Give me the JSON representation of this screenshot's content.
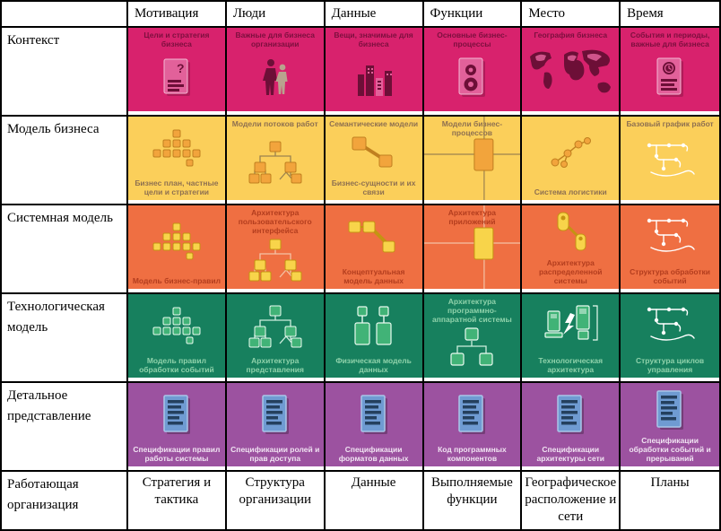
{
  "framework": {
    "header": {
      "corner": "",
      "columns": [
        "Мотивация",
        "Люди",
        "Данные",
        "Функции",
        "Место",
        "Время"
      ]
    },
    "rows": [
      {
        "label": "Контекст",
        "palette": {
          "bg": "#d8226d",
          "caption": "#7c0f3e",
          "a1": "#e2619a",
          "a2": "#6d0f37",
          "line": "#f2b8d2",
          "alt": "#b9a38e"
        },
        "cells": [
          {
            "caption_top": "Цели и стратегия бизнеса",
            "icon": "doc-question-icon"
          },
          {
            "caption_top": "Важные для бизнеса организации",
            "icon": "people-icon"
          },
          {
            "caption_top": "Вещи, значимые для бизнеса",
            "icon": "buildings-icon"
          },
          {
            "caption_top": "Основные бизнес-процессы",
            "icon": "doc-gears-icon"
          },
          {
            "caption_top": "География бизнеса",
            "icon": "world-map-icon"
          },
          {
            "caption_top": "События и периоды, важные для бизнеса",
            "icon": "doc-clock-icon"
          }
        ]
      },
      {
        "label": "Модель бизнеса",
        "palette": {
          "bg": "#fbcf5a",
          "caption": "#8e7050",
          "a1": "#f2a43c",
          "a2": "#c07f1f",
          "line": "#9b824f"
        },
        "cells": [
          {
            "caption_bottom": "Бизнес план, частные цели и стратегии",
            "icon": "pyramid-icon"
          },
          {
            "caption_top": "Модели потоков работ",
            "icon": "org-chart-icon"
          },
          {
            "caption_top": "Семантические модели",
            "caption_bottom": "Бизнес-сущности и их связи",
            "icon": "two-entities-icon"
          },
          {
            "caption_top": "Модели бизнес-процессов",
            "icon": "process-cross-icon"
          },
          {
            "caption_bottom": "Система логистики",
            "icon": "network-nodes-icon"
          },
          {
            "caption_top": "Базовый график работ",
            "icon": "sketch-schedule-icon"
          }
        ]
      },
      {
        "label": "Системная модель",
        "palette": {
          "bg": "#ef6f42",
          "caption": "#b33d1e",
          "a1": "#f8d44a",
          "a2": "#c49312",
          "line": "#f3c2a6"
        },
        "cells": [
          {
            "caption_bottom": "Модель бизнес-правил",
            "icon": "pyramid-icon"
          },
          {
            "caption_top": "Архитектура пользовательского интерфейса",
            "icon": "org-chart-icon"
          },
          {
            "caption_bottom": "Концептуальная модель данных",
            "icon": "three-entities-icon"
          },
          {
            "caption_top": "Архитектура приложений",
            "icon": "process-cross-icon"
          },
          {
            "caption_bottom": "Архитектура распределенной системы",
            "icon": "distributed-nodes-icon"
          },
          {
            "caption_bottom": "Структура обработки событий",
            "icon": "sketch-schedule-icon"
          }
        ]
      },
      {
        "label": "Технологическая модель",
        "palette": {
          "bg": "#17805e",
          "caption": "#8fd2ab",
          "a1": "#41b377",
          "a2": "#eafaf0",
          "line": "#cdeede"
        },
        "cells": [
          {
            "caption_bottom": "Модель правил обработки событий",
            "icon": "pyramid-icon"
          },
          {
            "caption_bottom": "Архитектура представления",
            "icon": "org-chart-icon"
          },
          {
            "caption_bottom": "Физическая модель данных",
            "icon": "data-entities-icon"
          },
          {
            "caption_top": "Архитектура программно-аппаратной системы",
            "icon": "hw-tree-icon"
          },
          {
            "caption_bottom": "Технологическая архитектура",
            "icon": "tech-computers-icon"
          },
          {
            "caption_bottom": "Структура циклов управления",
            "icon": "sketch-schedule-icon"
          }
        ]
      },
      {
        "label": "Детальное представление",
        "palette": {
          "bg": "#9c52a0",
          "caption": "#f0e3f2",
          "a1": "#6f9bd2",
          "a2": "#24405e",
          "line": "#a9c6e8"
        },
        "cells": [
          {
            "caption_bottom": "Спецификации правил работы системы",
            "icon": "spec-document-icon"
          },
          {
            "caption_bottom": "Спецификации ролей и прав доступа",
            "icon": "spec-document-icon"
          },
          {
            "caption_bottom": "Спецификации форматов данных",
            "icon": "spec-document-icon"
          },
          {
            "caption_bottom": "Код программных компонентов",
            "icon": "spec-document-icon"
          },
          {
            "caption_bottom": "Спецификации архитектуры сети",
            "icon": "spec-document-icon"
          },
          {
            "caption_bottom": "Спецификации обработки событий и прерываний",
            "icon": "spec-document-icon"
          }
        ]
      }
    ],
    "footer": {
      "label": "Работающая организация",
      "cells": [
        "Стратегия и тактика",
        "Структура организации",
        "Данные",
        "Выполняемые функции",
        "Географическое расположение и сети",
        "Планы"
      ]
    }
  }
}
